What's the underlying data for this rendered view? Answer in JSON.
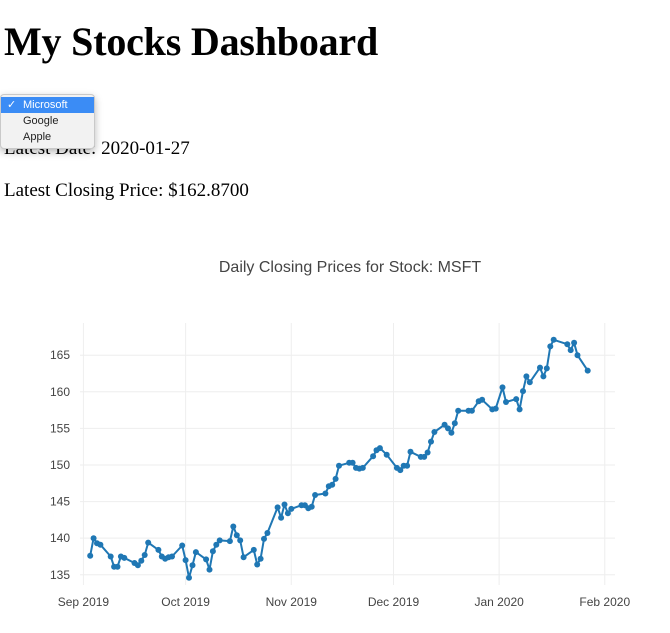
{
  "header": {
    "title": "My Stocks Dashboard"
  },
  "stock_select": {
    "options": [
      {
        "label": "Microsoft",
        "selected": true
      },
      {
        "label": "Google",
        "selected": false
      },
      {
        "label": "Apple",
        "selected": false
      }
    ],
    "check_mark": "✓"
  },
  "summary": {
    "date_label": "Latest Date: ",
    "date_value": "2020-01-27",
    "price_label": "Latest Closing Price: ",
    "price_value": "$162.8700"
  },
  "colors": {
    "series": "#1f77b4",
    "selected_option": "#3b8cf5"
  },
  "chart_data": {
    "type": "line",
    "title": "Daily Closing Prices for Stock: MSFT",
    "xlabel": "",
    "ylabel": "",
    "xlim": [
      "2019-08-31",
      "2020-02-04"
    ],
    "ylim": [
      133.6,
      169.4
    ],
    "grid": true,
    "legend": "none",
    "x_ticks": [
      {
        "date": "2019-09-01",
        "label": "Sep 2019"
      },
      {
        "date": "2019-10-01",
        "label": "Oct 2019"
      },
      {
        "date": "2019-11-01",
        "label": "Nov 2019"
      },
      {
        "date": "2019-12-01",
        "label": "Dec 2019"
      },
      {
        "date": "2020-01-01",
        "label": "Jan 2020"
      },
      {
        "date": "2020-02-01",
        "label": "Feb 2020"
      }
    ],
    "y_ticks": [
      135,
      140,
      145,
      150,
      155,
      160,
      165
    ],
    "series": [
      {
        "x": [
          "2019-09-03",
          "2019-09-04",
          "2019-09-05",
          "2019-09-06",
          "2019-09-09",
          "2019-09-10",
          "2019-09-11",
          "2019-09-12",
          "2019-09-13",
          "2019-09-16",
          "2019-09-17",
          "2019-09-18",
          "2019-09-19",
          "2019-09-20",
          "2019-09-23",
          "2019-09-24",
          "2019-09-25",
          "2019-09-26",
          "2019-09-27",
          "2019-09-30",
          "2019-10-01",
          "2019-10-02",
          "2019-10-03",
          "2019-10-04",
          "2019-10-07",
          "2019-10-08",
          "2019-10-09",
          "2019-10-10",
          "2019-10-11",
          "2019-10-14",
          "2019-10-15",
          "2019-10-16",
          "2019-10-17",
          "2019-10-18",
          "2019-10-21",
          "2019-10-22",
          "2019-10-23",
          "2019-10-24",
          "2019-10-25",
          "2019-10-28",
          "2019-10-29",
          "2019-10-30",
          "2019-10-31",
          "2019-11-01",
          "2019-11-04",
          "2019-11-05",
          "2019-11-06",
          "2019-11-07",
          "2019-11-08",
          "2019-11-11",
          "2019-11-12",
          "2019-11-13",
          "2019-11-14",
          "2019-11-15",
          "2019-11-18",
          "2019-11-19",
          "2019-11-20",
          "2019-11-21",
          "2019-11-22",
          "2019-11-25",
          "2019-11-26",
          "2019-11-27",
          "2019-11-29",
          "2019-12-02",
          "2019-12-03",
          "2019-12-04",
          "2019-12-05",
          "2019-12-06",
          "2019-12-09",
          "2019-12-10",
          "2019-12-11",
          "2019-12-12",
          "2019-12-13",
          "2019-12-16",
          "2019-12-17",
          "2019-12-18",
          "2019-12-19",
          "2019-12-20",
          "2019-12-23",
          "2019-12-24",
          "2019-12-26",
          "2019-12-27",
          "2019-12-30",
          "2019-12-31",
          "2020-01-02",
          "2020-01-03",
          "2020-01-06",
          "2020-01-07",
          "2020-01-08",
          "2020-01-09",
          "2020-01-10",
          "2020-01-13",
          "2020-01-14",
          "2020-01-15",
          "2020-01-16",
          "2020-01-17",
          "2020-01-21",
          "2020-01-22",
          "2020-01-23",
          "2020-01-24",
          "2020-01-27"
        ],
        "values": [
          137.6,
          140.0,
          139.3,
          139.1,
          137.5,
          136.1,
          136.1,
          137.5,
          137.3,
          136.6,
          136.3,
          136.9,
          137.7,
          139.4,
          138.4,
          137.5,
          137.2,
          137.4,
          137.5,
          139.0,
          137.0,
          134.6,
          136.3,
          138.1,
          137.1,
          135.7,
          138.2,
          139.1,
          139.7,
          139.6,
          141.6,
          140.4,
          139.7,
          137.4,
          138.4,
          136.4,
          137.2,
          139.9,
          140.7,
          144.2,
          142.8,
          144.6,
          143.4,
          144.0,
          144.5,
          144.5,
          144.1,
          144.3,
          145.9,
          146.1,
          147.1,
          147.3,
          148.1,
          149.9,
          150.3,
          150.3,
          149.6,
          149.5,
          149.6,
          151.2,
          152.0,
          152.3,
          151.4,
          149.6,
          149.3,
          149.9,
          149.9,
          151.8,
          151.1,
          151.1,
          151.7,
          153.2,
          154.5,
          155.5,
          155.0,
          154.4,
          155.7,
          157.4,
          157.4,
          157.4,
          158.7,
          158.9,
          157.6,
          157.7,
          160.6,
          158.6,
          159.0,
          157.6,
          160.1,
          162.1,
          161.3,
          163.3,
          162.1,
          163.2,
          166.2,
          167.1,
          166.5,
          165.7,
          166.7,
          165.0,
          162.9
        ]
      }
    ]
  }
}
